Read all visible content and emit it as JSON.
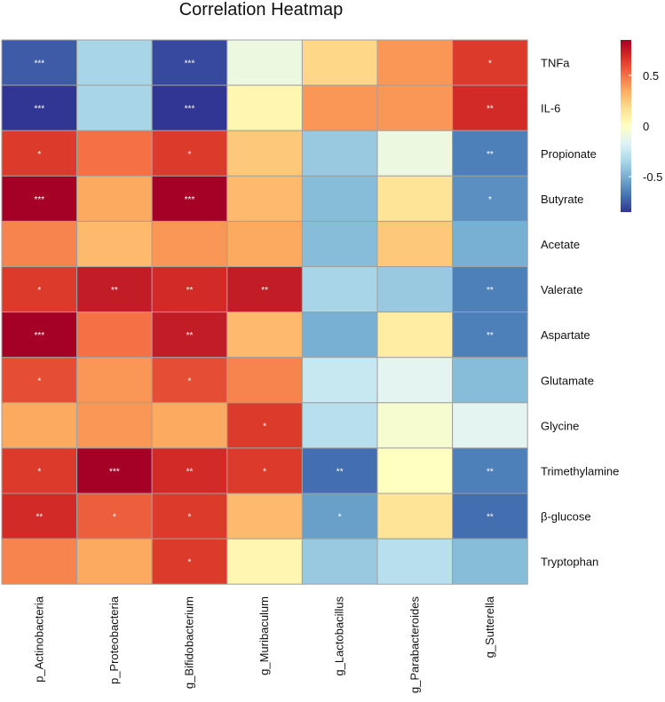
{
  "chart_data": {
    "type": "heatmap",
    "title": "Correlation Heatmap",
    "columns": [
      "p_Actinobacteria",
      "p_Proteobacteria",
      "g_Bifidobacterium",
      "g_Muribaculum",
      "g_Lactobacillus",
      "g_Parabacteroides",
      "g_Sutterella"
    ],
    "rows": [
      "TNFa",
      "IL-6",
      "Propionate",
      "Butyrate",
      "Acetate",
      "Valerate",
      "Aspartate",
      "Glutamate",
      "Glycine",
      "Trimethylamine",
      "β-glucose",
      "Tryptophan"
    ],
    "values": [
      [
        -0.75,
        -0.35,
        -0.8,
        -0.1,
        0.2,
        0.4,
        0.65
      ],
      [
        -0.85,
        -0.35,
        -0.85,
        0.05,
        0.4,
        0.4,
        0.7
      ],
      [
        0.65,
        0.5,
        0.65,
        0.25,
        -0.4,
        -0.1,
        -0.65
      ],
      [
        0.85,
        0.35,
        0.85,
        0.3,
        -0.45,
        0.15,
        -0.6
      ],
      [
        0.45,
        0.3,
        0.4,
        0.35,
        -0.45,
        0.25,
        -0.5
      ],
      [
        0.65,
        0.75,
        0.7,
        0.75,
        -0.35,
        -0.4,
        -0.65
      ],
      [
        0.85,
        0.5,
        0.75,
        0.3,
        -0.5,
        0.1,
        -0.65
      ],
      [
        0.6,
        0.4,
        0.6,
        0.45,
        -0.25,
        -0.15,
        -0.45
      ],
      [
        0.35,
        0.4,
        0.35,
        0.65,
        -0.3,
        -0.05,
        -0.15
      ],
      [
        0.65,
        0.85,
        0.7,
        0.65,
        -0.7,
        0.0,
        -0.65
      ],
      [
        0.7,
        0.55,
        0.65,
        0.3,
        -0.55,
        0.15,
        -0.7
      ],
      [
        0.45,
        0.35,
        0.65,
        0.05,
        -0.4,
        -0.3,
        -0.45
      ]
    ],
    "significance": [
      [
        "***",
        "",
        "***",
        "",
        "",
        "",
        "*"
      ],
      [
        "***",
        "",
        "***",
        "",
        "",
        "",
        "**"
      ],
      [
        "*",
        "",
        "*",
        "",
        "",
        "",
        "**"
      ],
      [
        "***",
        "",
        "***",
        "",
        "",
        "",
        "*"
      ],
      [
        "",
        "",
        "",
        "",
        "",
        "",
        ""
      ],
      [
        "*",
        "**",
        "**",
        "**",
        "",
        "",
        "**"
      ],
      [
        "***",
        "",
        "**",
        "",
        "",
        "",
        "**"
      ],
      [
        "*",
        "",
        "*",
        "",
        "",
        "",
        ""
      ],
      [
        "",
        "",
        "",
        "*",
        "",
        "",
        ""
      ],
      [
        "*",
        "***",
        "**",
        "*",
        "**",
        "",
        "**"
      ],
      [
        "**",
        "*",
        "*",
        "",
        "*",
        "",
        "**"
      ],
      [
        "",
        "",
        "*",
        "",
        "",
        "",
        ""
      ]
    ],
    "colorbar": {
      "range": [
        -0.85,
        0.85
      ],
      "tick_values": [
        0.5,
        0,
        -0.5
      ],
      "tick_labels": [
        "0.5",
        "0",
        "-0.5"
      ],
      "stops": [
        "#313695",
        "#4575b4",
        "#74add1",
        "#abd9e9",
        "#e0f3f8",
        "#ffffbf",
        "#fee090",
        "#fdae61",
        "#f46d43",
        "#d73027",
        "#a50026"
      ]
    },
    "grid_color": "#a0a0a0"
  }
}
